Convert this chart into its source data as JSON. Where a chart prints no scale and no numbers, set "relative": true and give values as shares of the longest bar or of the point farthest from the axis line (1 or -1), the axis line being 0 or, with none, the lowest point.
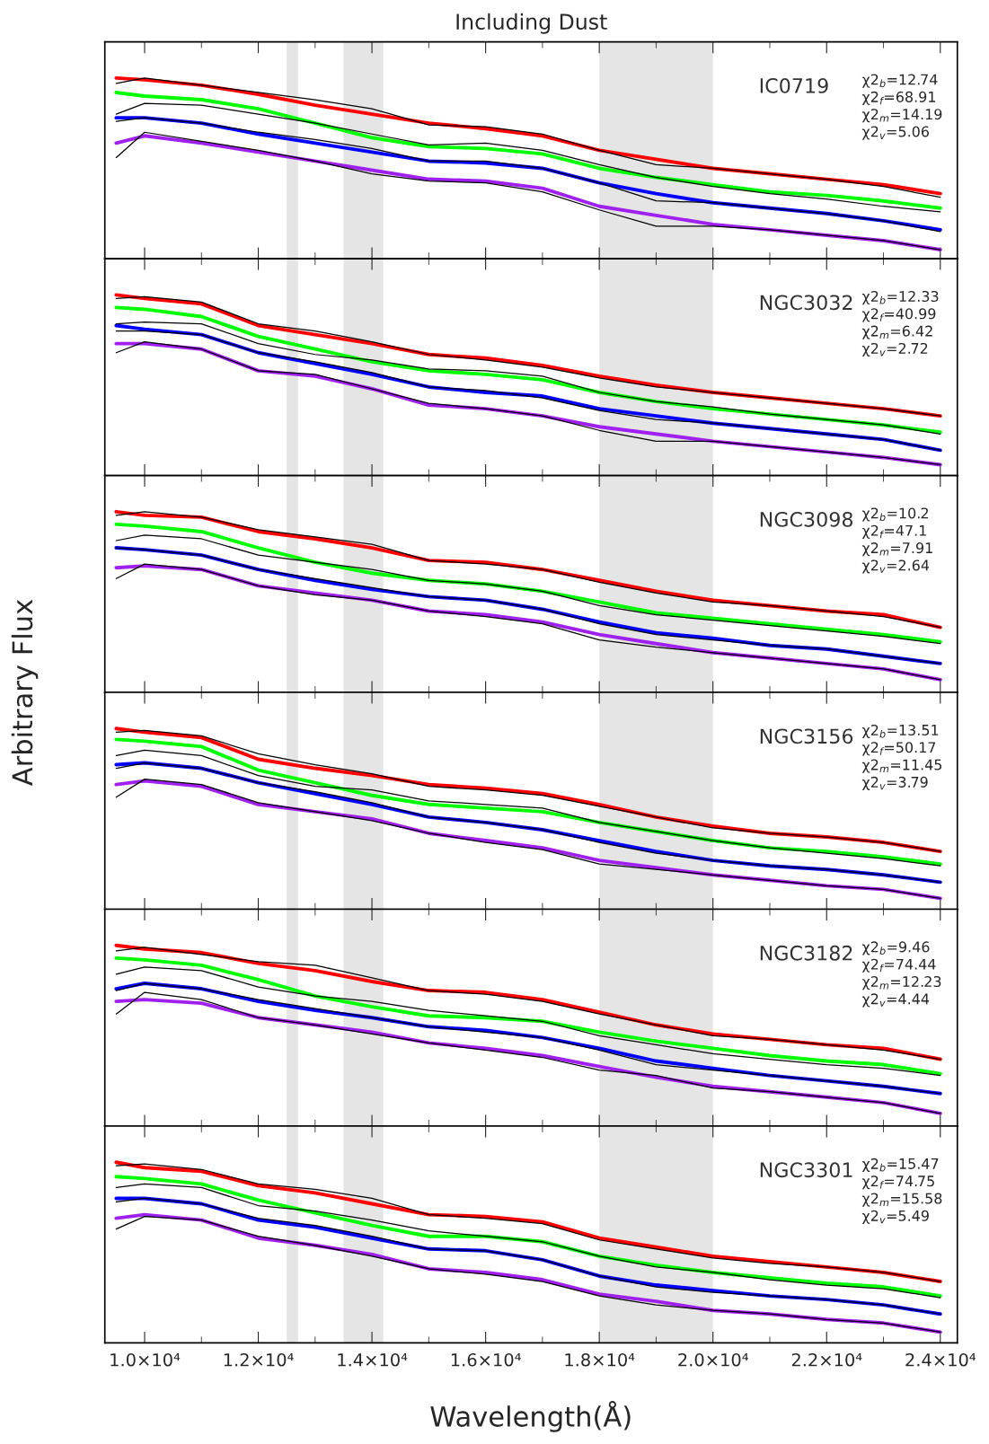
{
  "chart_data": [
    {
      "type": "line",
      "title": "Including Dust",
      "relative": true,
      "tick_labels": false,
      "x": [
        9500,
        10000,
        11000,
        12000,
        13000,
        14000,
        15000,
        16000,
        17000,
        18000,
        19000,
        20000,
        21000,
        22000,
        23000,
        24000
      ],
      "xlim": [
        9300,
        24300
      ],
      "xticks": [
        {
          "value": 10000,
          "label": null
        },
        {
          "value": 12000,
          "label": null
        },
        {
          "value": 14000,
          "label": null
        },
        {
          "value": 16000,
          "label": null
        },
        {
          "value": 18000,
          "label": null
        },
        {
          "value": 20000,
          "label": null
        },
        {
          "value": 22000,
          "label": null
        },
        {
          "value": 24000,
          "label": null
        }
      ],
      "bands": [
        {
          "axis": "x",
          "from": 12500,
          "to": 12700,
          "color": "#e5e5e5"
        },
        {
          "axis": "x",
          "from": 13500,
          "to": 14200,
          "color": "#e5e5e5"
        },
        {
          "axis": "x",
          "from": 18000,
          "to": 20000,
          "color": "#e5e5e5"
        }
      ],
      "annotations": [
        "IC0719",
        "χ2$_{b}$=12.74",
        "χ2$_{f}$=68.91",
        "χ2$_{m}$=14.19",
        "χ2$_{v}$=5.06"
      ],
      "series": [
        {
          "color": "#ff0000",
          "values": [
            1.0,
            0.99,
            0.96,
            0.91,
            0.85,
            0.8,
            0.75,
            0.72,
            0.68,
            0.6,
            0.55,
            0.5,
            0.47,
            0.44,
            0.41,
            0.36
          ]
        },
        {
          "color": "#000000",
          "values": [
            0.97,
            1.0,
            0.96,
            0.92,
            0.88,
            0.83,
            0.74,
            0.73,
            0.69,
            0.6,
            0.52,
            0.5,
            0.47,
            0.44,
            0.4,
            0.34
          ]
        },
        {
          "color": "#00ff00",
          "values": [
            0.92,
            0.9,
            0.88,
            0.83,
            0.75,
            0.67,
            0.62,
            0.61,
            0.58,
            0.5,
            0.45,
            0.41,
            0.37,
            0.35,
            0.32,
            0.28
          ]
        },
        {
          "color": "#000000",
          "values": [
            0.8,
            0.86,
            0.85,
            0.8,
            0.75,
            0.69,
            0.63,
            0.64,
            0.6,
            0.52,
            0.45,
            0.4,
            0.36,
            0.33,
            0.29,
            0.26
          ]
        },
        {
          "color": "#0000ff",
          "values": [
            0.78,
            0.78,
            0.75,
            0.69,
            0.64,
            0.59,
            0.54,
            0.53,
            0.5,
            0.42,
            0.36,
            0.31,
            0.28,
            0.25,
            0.21,
            0.16
          ]
        },
        {
          "color": "#000000",
          "values": [
            0.76,
            0.78,
            0.75,
            0.7,
            0.66,
            0.61,
            0.54,
            0.54,
            0.5,
            0.42,
            0.32,
            0.31,
            0.28,
            0.25,
            0.21,
            0.15
          ]
        },
        {
          "color": "#a020f0",
          "values": [
            0.64,
            0.68,
            0.64,
            0.59,
            0.54,
            0.49,
            0.44,
            0.43,
            0.39,
            0.29,
            0.24,
            0.19,
            0.16,
            0.13,
            0.1,
            0.05
          ]
        },
        {
          "color": "#000000",
          "values": [
            0.56,
            0.7,
            0.65,
            0.6,
            0.54,
            0.47,
            0.43,
            0.42,
            0.37,
            0.27,
            0.18,
            0.18,
            0.16,
            0.13,
            0.1,
            0.05
          ]
        }
      ]
    },
    {
      "type": "line",
      "relative": true,
      "tick_labels": false,
      "x": [
        9500,
        10000,
        11000,
        12000,
        13000,
        14000,
        15000,
        16000,
        17000,
        18000,
        19000,
        20000,
        21000,
        22000,
        23000,
        24000
      ],
      "xlim": [
        9300,
        24300
      ],
      "xticks": [
        {
          "value": 10000,
          "label": null
        },
        {
          "value": 12000,
          "label": null
        },
        {
          "value": 14000,
          "label": null
        },
        {
          "value": 16000,
          "label": null
        },
        {
          "value": 18000,
          "label": null
        },
        {
          "value": 20000,
          "label": null
        },
        {
          "value": 22000,
          "label": null
        },
        {
          "value": 24000,
          "label": null
        }
      ],
      "bands": [
        {
          "axis": "x",
          "from": 12500,
          "to": 12700,
          "color": "#e5e5e5"
        },
        {
          "axis": "x",
          "from": 13500,
          "to": 14200,
          "color": "#e5e5e5"
        },
        {
          "axis": "x",
          "from": 18000,
          "to": 20000,
          "color": "#e5e5e5"
        }
      ],
      "annotations": [
        "NGC3032",
        "χ2$_{b}$=12.33",
        "χ2$_{f}$=40.99",
        "χ2$_{m}$=6.42",
        "χ2$_{v}$=2.72"
      ],
      "series": [
        {
          "color": "#ff0000",
          "values": [
            1.0,
            0.98,
            0.95,
            0.83,
            0.78,
            0.73,
            0.67,
            0.65,
            0.61,
            0.55,
            0.5,
            0.46,
            0.43,
            0.4,
            0.37,
            0.33
          ]
        },
        {
          "color": "#000000",
          "values": [
            0.98,
            0.99,
            0.96,
            0.84,
            0.8,
            0.74,
            0.67,
            0.64,
            0.6,
            0.54,
            0.49,
            0.46,
            0.43,
            0.4,
            0.37,
            0.33
          ]
        },
        {
          "color": "#00ff00",
          "values": [
            0.93,
            0.92,
            0.88,
            0.77,
            0.7,
            0.63,
            0.58,
            0.56,
            0.53,
            0.46,
            0.41,
            0.37,
            0.34,
            0.31,
            0.28,
            0.24
          ]
        },
        {
          "color": "#000000",
          "values": [
            0.84,
            0.85,
            0.84,
            0.73,
            0.67,
            0.64,
            0.59,
            0.58,
            0.55,
            0.46,
            0.41,
            0.38,
            0.34,
            0.31,
            0.28,
            0.23
          ]
        },
        {
          "color": "#0000ff",
          "values": [
            0.83,
            0.81,
            0.78,
            0.68,
            0.62,
            0.56,
            0.49,
            0.46,
            0.44,
            0.37,
            0.33,
            0.29,
            0.26,
            0.23,
            0.2,
            0.14
          ]
        },
        {
          "color": "#000000",
          "values": [
            0.8,
            0.8,
            0.78,
            0.68,
            0.63,
            0.57,
            0.49,
            0.47,
            0.43,
            0.36,
            0.31,
            0.29,
            0.26,
            0.23,
            0.2,
            0.14
          ]
        },
        {
          "color": "#a020f0",
          "values": [
            0.73,
            0.73,
            0.7,
            0.58,
            0.55,
            0.48,
            0.39,
            0.37,
            0.33,
            0.27,
            0.23,
            0.19,
            0.16,
            0.13,
            0.1,
            0.06
          ]
        },
        {
          "color": "#000000",
          "values": [
            0.68,
            0.74,
            0.7,
            0.58,
            0.56,
            0.48,
            0.4,
            0.37,
            0.33,
            0.25,
            0.19,
            0.19,
            0.16,
            0.13,
            0.1,
            0.06
          ]
        }
      ]
    },
    {
      "type": "line",
      "relative": true,
      "tick_labels": false,
      "ylabel": "Arbitrary Flux",
      "x": [
        9500,
        10000,
        11000,
        12000,
        13000,
        14000,
        15000,
        16000,
        17000,
        18000,
        19000,
        20000,
        21000,
        22000,
        23000,
        24000
      ],
      "xlim": [
        9300,
        24300
      ],
      "xticks": [
        {
          "value": 10000,
          "label": null
        },
        {
          "value": 12000,
          "label": null
        },
        {
          "value": 14000,
          "label": null
        },
        {
          "value": 16000,
          "label": null
        },
        {
          "value": 18000,
          "label": null
        },
        {
          "value": 20000,
          "label": null
        },
        {
          "value": 22000,
          "label": null
        },
        {
          "value": 24000,
          "label": null
        }
      ],
      "bands": [
        {
          "axis": "x",
          "from": 12500,
          "to": 12700,
          "color": "#e5e5e5"
        },
        {
          "axis": "x",
          "from": 13500,
          "to": 14200,
          "color": "#e5e5e5"
        },
        {
          "axis": "x",
          "from": 18000,
          "to": 20000,
          "color": "#e5e5e5"
        }
      ],
      "annotations": [
        "NGC3098",
        "χ2$_{b}$=10.2",
        "χ2$_{f}$=47.1",
        "χ2$_{m}$=7.91",
        "χ2$_{v}$=2.64"
      ],
      "series": [
        {
          "color": "#ff0000",
          "values": [
            1.0,
            0.98,
            0.97,
            0.89,
            0.85,
            0.8,
            0.73,
            0.72,
            0.68,
            0.62,
            0.56,
            0.51,
            0.48,
            0.45,
            0.43,
            0.36
          ]
        },
        {
          "color": "#000000",
          "values": [
            0.98,
            1.0,
            0.97,
            0.9,
            0.86,
            0.82,
            0.73,
            0.71,
            0.68,
            0.61,
            0.55,
            0.5,
            0.48,
            0.45,
            0.42,
            0.36
          ]
        },
        {
          "color": "#00ff00",
          "values": [
            0.93,
            0.92,
            0.89,
            0.8,
            0.72,
            0.66,
            0.62,
            0.6,
            0.56,
            0.5,
            0.44,
            0.41,
            0.38,
            0.35,
            0.32,
            0.28
          ]
        },
        {
          "color": "#000000",
          "values": [
            0.84,
            0.87,
            0.85,
            0.76,
            0.72,
            0.68,
            0.62,
            0.6,
            0.56,
            0.48,
            0.43,
            0.4,
            0.37,
            0.34,
            0.31,
            0.27
          ]
        },
        {
          "color": "#0000ff",
          "values": [
            0.8,
            0.79,
            0.76,
            0.68,
            0.62,
            0.57,
            0.53,
            0.51,
            0.46,
            0.39,
            0.33,
            0.3,
            0.26,
            0.24,
            0.2,
            0.16
          ]
        },
        {
          "color": "#000000",
          "values": [
            0.8,
            0.79,
            0.76,
            0.68,
            0.63,
            0.58,
            0.53,
            0.51,
            0.46,
            0.38,
            0.32,
            0.29,
            0.26,
            0.24,
            0.2,
            0.16
          ]
        },
        {
          "color": "#a020f0",
          "values": [
            0.69,
            0.7,
            0.68,
            0.59,
            0.55,
            0.51,
            0.45,
            0.43,
            0.39,
            0.32,
            0.27,
            0.22,
            0.19,
            0.16,
            0.13,
            0.07
          ]
        },
        {
          "color": "#000000",
          "values": [
            0.63,
            0.71,
            0.68,
            0.59,
            0.54,
            0.51,
            0.45,
            0.42,
            0.38,
            0.29,
            0.25,
            0.22,
            0.19,
            0.16,
            0.13,
            0.07
          ]
        }
      ]
    },
    {
      "type": "line",
      "relative": true,
      "tick_labels": false,
      "x": [
        9500,
        10000,
        11000,
        12000,
        13000,
        14000,
        15000,
        16000,
        17000,
        18000,
        19000,
        20000,
        21000,
        22000,
        23000,
        24000
      ],
      "xlim": [
        9300,
        24300
      ],
      "xticks": [
        {
          "value": 10000,
          "label": null
        },
        {
          "value": 12000,
          "label": null
        },
        {
          "value": 14000,
          "label": null
        },
        {
          "value": 16000,
          "label": null
        },
        {
          "value": 18000,
          "label": null
        },
        {
          "value": 20000,
          "label": null
        },
        {
          "value": 22000,
          "label": null
        },
        {
          "value": 24000,
          "label": null
        }
      ],
      "bands": [
        {
          "axis": "x",
          "from": 12500,
          "to": 12700,
          "color": "#e5e5e5"
        },
        {
          "axis": "x",
          "from": 13500,
          "to": 14200,
          "color": "#e5e5e5"
        },
        {
          "axis": "x",
          "from": 18000,
          "to": 20000,
          "color": "#e5e5e5"
        }
      ],
      "annotations": [
        "NGC3156",
        "χ2$_{b}$=13.51",
        "χ2$_{f}$=50.17",
        "χ2$_{m}$=11.45",
        "χ2$_{v}$=3.79"
      ],
      "series": [
        {
          "color": "#ff0000",
          "values": [
            1.0,
            0.98,
            0.95,
            0.83,
            0.78,
            0.74,
            0.69,
            0.67,
            0.64,
            0.58,
            0.51,
            0.46,
            0.42,
            0.4,
            0.37,
            0.32
          ]
        },
        {
          "color": "#000000",
          "values": [
            0.98,
            0.99,
            0.96,
            0.86,
            0.8,
            0.75,
            0.68,
            0.66,
            0.63,
            0.57,
            0.51,
            0.45,
            0.42,
            0.4,
            0.37,
            0.32
          ]
        },
        {
          "color": "#00ff00",
          "values": [
            0.94,
            0.93,
            0.9,
            0.77,
            0.7,
            0.63,
            0.58,
            0.56,
            0.54,
            0.48,
            0.43,
            0.38,
            0.34,
            0.32,
            0.29,
            0.25
          ]
        },
        {
          "color": "#000000",
          "values": [
            0.85,
            0.88,
            0.85,
            0.74,
            0.68,
            0.66,
            0.6,
            0.58,
            0.56,
            0.48,
            0.43,
            0.38,
            0.34,
            0.31,
            0.28,
            0.24
          ]
        },
        {
          "color": "#0000ff",
          "values": [
            0.8,
            0.81,
            0.78,
            0.7,
            0.64,
            0.58,
            0.51,
            0.48,
            0.44,
            0.38,
            0.32,
            0.27,
            0.24,
            0.22,
            0.19,
            0.15
          ]
        },
        {
          "color": "#000000",
          "values": [
            0.78,
            0.81,
            0.78,
            0.7,
            0.65,
            0.59,
            0.51,
            0.48,
            0.44,
            0.37,
            0.31,
            0.27,
            0.24,
            0.22,
            0.19,
            0.15
          ]
        },
        {
          "color": "#a020f0",
          "values": [
            0.69,
            0.71,
            0.68,
            0.58,
            0.54,
            0.5,
            0.42,
            0.38,
            0.34,
            0.27,
            0.23,
            0.19,
            0.16,
            0.13,
            0.11,
            0.06
          ]
        },
        {
          "color": "#000000",
          "values": [
            0.62,
            0.72,
            0.69,
            0.59,
            0.54,
            0.49,
            0.42,
            0.37,
            0.33,
            0.25,
            0.22,
            0.19,
            0.16,
            0.13,
            0.11,
            0.06
          ]
        }
      ]
    },
    {
      "type": "line",
      "relative": true,
      "tick_labels": false,
      "x": [
        9500,
        10000,
        11000,
        12000,
        13000,
        14000,
        15000,
        16000,
        17000,
        18000,
        19000,
        20000,
        21000,
        22000,
        23000,
        24000
      ],
      "xlim": [
        9300,
        24300
      ],
      "xticks": [
        {
          "value": 10000,
          "label": null
        },
        {
          "value": 12000,
          "label": null
        },
        {
          "value": 14000,
          "label": null
        },
        {
          "value": 16000,
          "label": null
        },
        {
          "value": 18000,
          "label": null
        },
        {
          "value": 20000,
          "label": null
        },
        {
          "value": 22000,
          "label": null
        },
        {
          "value": 24000,
          "label": null
        }
      ],
      "bands": [
        {
          "axis": "x",
          "from": 12500,
          "to": 12700,
          "color": "#e5e5e5"
        },
        {
          "axis": "x",
          "from": 13500,
          "to": 14200,
          "color": "#e5e5e5"
        },
        {
          "axis": "x",
          "from": 18000,
          "to": 20000,
          "color": "#e5e5e5"
        }
      ],
      "annotations": [
        "NGC3182",
        "χ2$_{b}$=9.46",
        "χ2$_{f}$=74.44",
        "χ2$_{m}$=12.23",
        "χ2$_{v}$=4.44"
      ],
      "series": [
        {
          "color": "#ff0000",
          "values": [
            1.0,
            0.98,
            0.96,
            0.9,
            0.86,
            0.8,
            0.75,
            0.74,
            0.7,
            0.63,
            0.56,
            0.51,
            0.48,
            0.45,
            0.43,
            0.37
          ]
        },
        {
          "color": "#000000",
          "values": [
            0.97,
            0.99,
            0.95,
            0.91,
            0.89,
            0.82,
            0.75,
            0.73,
            0.69,
            0.62,
            0.56,
            0.5,
            0.48,
            0.45,
            0.42,
            0.37
          ]
        },
        {
          "color": "#00ff00",
          "values": [
            0.93,
            0.92,
            0.89,
            0.81,
            0.72,
            0.66,
            0.61,
            0.6,
            0.58,
            0.52,
            0.47,
            0.43,
            0.39,
            0.36,
            0.34,
            0.29
          ]
        },
        {
          "color": "#000000",
          "values": [
            0.84,
            0.88,
            0.86,
            0.77,
            0.72,
            0.69,
            0.64,
            0.61,
            0.58,
            0.5,
            0.45,
            0.4,
            0.37,
            0.34,
            0.32,
            0.28
          ]
        },
        {
          "color": "#0000ff",
          "values": [
            0.76,
            0.79,
            0.76,
            0.69,
            0.64,
            0.6,
            0.55,
            0.53,
            0.49,
            0.43,
            0.36,
            0.32,
            0.28,
            0.25,
            0.22,
            0.18
          ]
        },
        {
          "color": "#000000",
          "values": [
            0.75,
            0.79,
            0.76,
            0.7,
            0.65,
            0.6,
            0.55,
            0.52,
            0.49,
            0.42,
            0.34,
            0.31,
            0.28,
            0.25,
            0.22,
            0.18
          ]
        },
        {
          "color": "#a020f0",
          "values": [
            0.69,
            0.7,
            0.68,
            0.6,
            0.56,
            0.52,
            0.46,
            0.43,
            0.39,
            0.33,
            0.27,
            0.22,
            0.19,
            0.16,
            0.13,
            0.07
          ]
        },
        {
          "color": "#000000",
          "values": [
            0.62,
            0.74,
            0.7,
            0.6,
            0.56,
            0.51,
            0.46,
            0.42,
            0.38,
            0.31,
            0.28,
            0.21,
            0.19,
            0.16,
            0.13,
            0.07
          ]
        }
      ]
    },
    {
      "type": "line",
      "relative": true,
      "tick_labels": "x",
      "xlabel": "Wavelength(Å)",
      "x": [
        9500,
        10000,
        11000,
        12000,
        13000,
        14000,
        15000,
        16000,
        17000,
        18000,
        19000,
        20000,
        21000,
        22000,
        23000,
        24000
      ],
      "xlim": [
        9300,
        24300
      ],
      "xticks": [
        {
          "value": 10000,
          "label": "1.0×10⁴"
        },
        {
          "value": 12000,
          "label": "1.2×10⁴"
        },
        {
          "value": 14000,
          "label": "1.4×10⁴"
        },
        {
          "value": 16000,
          "label": "1.6×10⁴"
        },
        {
          "value": 18000,
          "label": "1.8×10⁴"
        },
        {
          "value": 20000,
          "label": "2.0×10⁴"
        },
        {
          "value": 22000,
          "label": "2.2×10⁴"
        },
        {
          "value": 24000,
          "label": "2.4×10⁴"
        }
      ],
      "bands": [
        {
          "axis": "x",
          "from": 12500,
          "to": 12700,
          "color": "#e5e5e5"
        },
        {
          "axis": "x",
          "from": 13500,
          "to": 14200,
          "color": "#e5e5e5"
        },
        {
          "axis": "x",
          "from": 18000,
          "to": 20000,
          "color": "#e5e5e5"
        }
      ],
      "annotations": [
        "NGC3301",
        "χ2$_{b}$=15.47",
        "χ2$_{f}$=74.75",
        "χ2$_{m}$=15.58",
        "χ2$_{v}$=5.49"
      ],
      "series": [
        {
          "color": "#ff0000",
          "values": [
            1.0,
            0.97,
            0.95,
            0.87,
            0.83,
            0.77,
            0.71,
            0.7,
            0.67,
            0.58,
            0.53,
            0.48,
            0.45,
            0.42,
            0.39,
            0.34
          ]
        },
        {
          "color": "#000000",
          "values": [
            0.98,
            0.99,
            0.96,
            0.88,
            0.85,
            0.8,
            0.71,
            0.69,
            0.66,
            0.57,
            0.52,
            0.47,
            0.44,
            0.42,
            0.39,
            0.34
          ]
        },
        {
          "color": "#00ff00",
          "values": [
            0.92,
            0.91,
            0.88,
            0.79,
            0.72,
            0.65,
            0.59,
            0.59,
            0.56,
            0.48,
            0.43,
            0.39,
            0.36,
            0.33,
            0.31,
            0.26
          ]
        },
        {
          "color": "#000000",
          "values": [
            0.86,
            0.88,
            0.86,
            0.76,
            0.73,
            0.68,
            0.62,
            0.59,
            0.56,
            0.48,
            0.42,
            0.39,
            0.35,
            0.32,
            0.3,
            0.25
          ]
        },
        {
          "color": "#0000ff",
          "values": [
            0.8,
            0.8,
            0.77,
            0.68,
            0.64,
            0.58,
            0.52,
            0.51,
            0.46,
            0.37,
            0.32,
            0.29,
            0.26,
            0.24,
            0.21,
            0.16
          ]
        },
        {
          "color": "#000000",
          "values": [
            0.78,
            0.8,
            0.77,
            0.69,
            0.65,
            0.59,
            0.52,
            0.51,
            0.46,
            0.37,
            0.31,
            0.28,
            0.26,
            0.24,
            0.21,
            0.16
          ]
        },
        {
          "color": "#a020f0",
          "values": [
            0.69,
            0.71,
            0.68,
            0.58,
            0.54,
            0.49,
            0.41,
            0.39,
            0.35,
            0.27,
            0.23,
            0.18,
            0.16,
            0.13,
            0.11,
            0.06
          ]
        },
        {
          "color": "#000000",
          "values": [
            0.63,
            0.7,
            0.68,
            0.59,
            0.54,
            0.48,
            0.41,
            0.38,
            0.34,
            0.26,
            0.21,
            0.18,
            0.16,
            0.13,
            0.11,
            0.06
          ]
        }
      ]
    }
  ]
}
